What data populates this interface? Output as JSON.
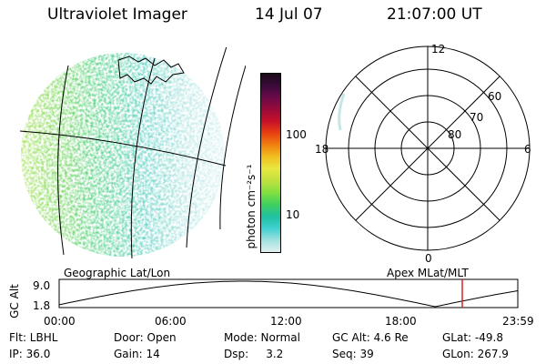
{
  "header": {
    "title": "Ultraviolet Imager",
    "date": "14 Jul 07",
    "time": "21:07:00 UT"
  },
  "colorbar": {
    "unit": "photon cm⁻²s⁻¹",
    "ticks": [
      "100",
      "10"
    ],
    "colors": [
      "#1a0a1a",
      "#3a0a3a",
      "#6a0a4a",
      "#9a0a3a",
      "#c8102a",
      "#e84010",
      "#f08010",
      "#f0c020",
      "#e8e840",
      "#c0e040",
      "#80e040",
      "#40d060",
      "#20c0a0",
      "#40d0d0",
      "#a0e0e0",
      "#e0f0f0"
    ]
  },
  "left_map": {
    "label": "Geographic Lat/Lon"
  },
  "polar": {
    "label": "Apex MLat/MLT",
    "mlt": [
      "12",
      "18",
      "6",
      "0"
    ],
    "mlat": [
      "60",
      "70",
      "80"
    ]
  },
  "altitude": {
    "axis_label": "GC Alt",
    "yticks": [
      "9.0",
      "1.8"
    ],
    "xticks": [
      "00:00",
      "06:00",
      "12:00",
      "18:00",
      "23:59"
    ],
    "marker_color": "#e02020"
  },
  "info": {
    "row1": [
      "Flt: LBHL",
      "Door: Open",
      "Mode: Normal",
      "GC Alt: 4.6 Re",
      "GLat: -49.8"
    ],
    "row2": [
      "IP: 36.0",
      "Gain: 14",
      "Dsp:     3.2",
      "Seq: 39",
      "GLon: 267.9"
    ]
  }
}
